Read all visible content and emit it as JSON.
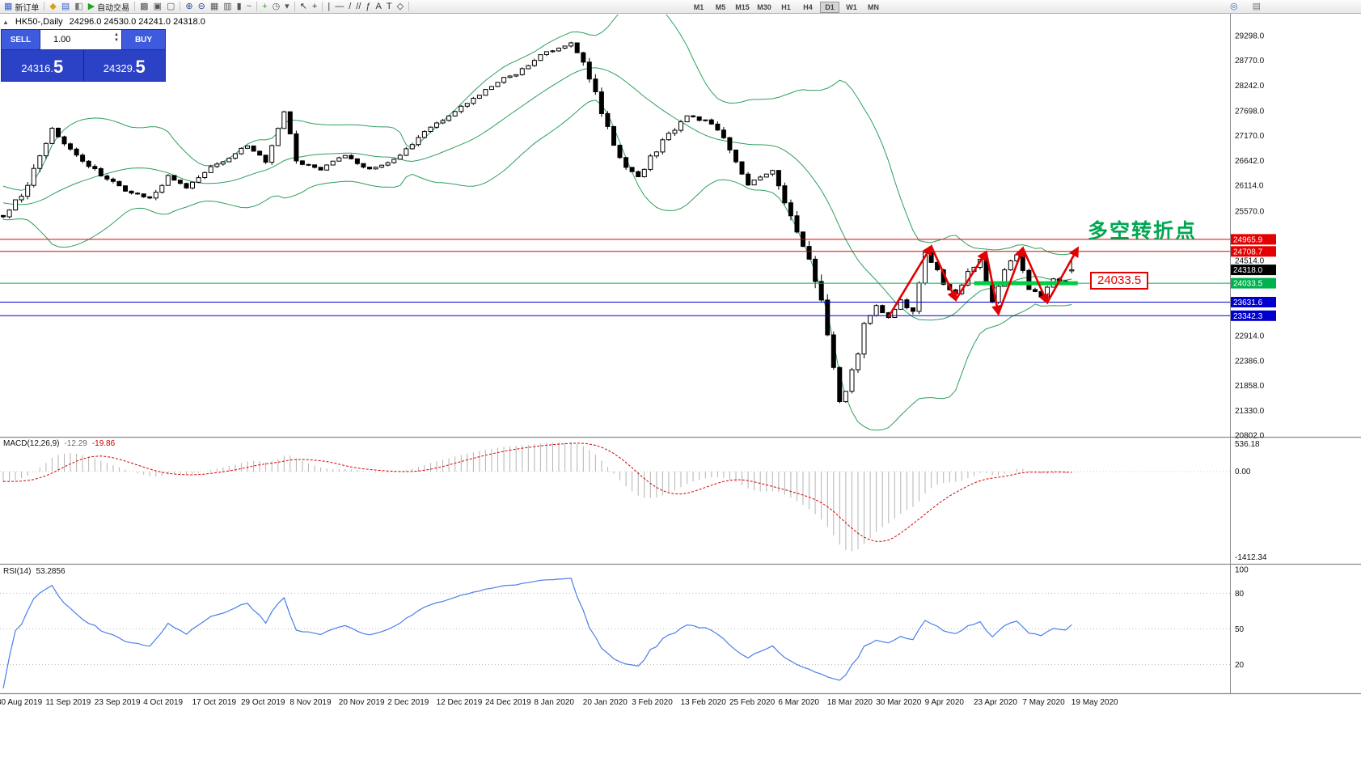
{
  "toolbar": {
    "left_items": [
      {
        "name": "new-order-button",
        "glyph": "▦",
        "glyph_color": "#3a62c8",
        "label": "新订单"
      },
      {
        "sep": true
      },
      {
        "name": "profiles-icon",
        "glyph": "◆",
        "glyph_color": "#d4a017"
      },
      {
        "name": "market-watch-icon",
        "glyph": "▤",
        "glyph_color": "#3a62c8"
      },
      {
        "name": "navigator-icon",
        "glyph": "◧",
        "glyph_color": "#777777"
      },
      {
        "name": "auto-trading-button",
        "glyph": "▶",
        "glyph_color": "#1fa51f",
        "label": "自动交易"
      },
      {
        "sep": true
      },
      {
        "name": "new-chart-icon",
        "glyph": "▩",
        "glyph_color": "#555555"
      },
      {
        "name": "cascade-windows-icon",
        "glyph": "▣",
        "glyph_color": "#555555"
      },
      {
        "name": "tile-windows-icon",
        "glyph": "▢",
        "glyph_color": "#555555"
      },
      {
        "sep": true
      },
      {
        "name": "zoom-in-icon",
        "glyph": "⊕",
        "glyph_color": "#2f4f8f"
      },
      {
        "name": "zoom-out-icon",
        "glyph": "⊖",
        "glyph_color": "#2f4f8f"
      },
      {
        "name": "grid-icon",
        "glyph": "▦",
        "glyph_color": "#555555"
      },
      {
        "name": "bar-chart-icon",
        "glyph": "▥",
        "glyph_color": "#555555"
      },
      {
        "name": "candlestick-chart-icon",
        "glyph": "▮",
        "glyph_color": "#555555"
      },
      {
        "name": "line-chart-icon",
        "glyph": "~",
        "glyph_color": "#555555"
      },
      {
        "sep": true
      },
      {
        "name": "indicators-icon",
        "glyph": "+",
        "glyph_color": "#1fa51f"
      },
      {
        "name": "periods-icon",
        "glyph": "◷",
        "glyph_color": "#555555"
      },
      {
        "name": "templates-icon",
        "glyph": "▾",
        "glyph_color": "#555555"
      },
      {
        "sep": true
      },
      {
        "name": "cursor-icon",
        "glyph": "↖",
        "glyph_color": "#333333"
      },
      {
        "name": "crosshair-icon",
        "glyph": "+",
        "glyph_color": "#333333"
      },
      {
        "sep": true
      },
      {
        "name": "vertical-line-icon",
        "glyph": "|",
        "glyph_color": "#333333"
      },
      {
        "name": "horizontal-line-icon",
        "glyph": "—",
        "glyph_color": "#333333"
      },
      {
        "name": "trendline-icon",
        "glyph": "/",
        "glyph_color": "#333333"
      },
      {
        "name": "channel-icon",
        "glyph": "//",
        "glyph_color": "#333333"
      },
      {
        "name": "fibonacci-icon",
        "glyph": "ƒ",
        "glyph_color": "#333333"
      },
      {
        "name": "text-icon",
        "glyph": "A",
        "glyph_color": "#333333"
      },
      {
        "name": "label-icon",
        "glyph": "T",
        "glyph_color": "#333333"
      },
      {
        "name": "shapes-icon",
        "glyph": "◇",
        "glyph_color": "#333333"
      },
      {
        "sep": true
      }
    ],
    "timeframes": {
      "items": [
        "M1",
        "M5",
        "M15",
        "M30",
        "H1",
        "H4",
        "D1",
        "W1",
        "MN"
      ],
      "active": "D1"
    },
    "right_items": [
      {
        "name": "search-icon",
        "glyph": "◎",
        "glyph_color": "#2f6fd4"
      },
      {
        "name": "panels-icon",
        "glyph": "▤",
        "glyph_color": "#777777"
      }
    ]
  },
  "trade_panel": {
    "sell_label": "SELL",
    "buy_label": "BUY",
    "lot": "1.00",
    "sell_price": "24316.5",
    "buy_price": "24329.5"
  },
  "chart_header": {
    "symbol": "HK50-,Daily",
    "ohlc": "24296.0 24530.0 24241.0 24318.0"
  },
  "indicators": {
    "macd": {
      "label": "MACD(12,26,9)",
      "value": "-12.29",
      "signal": "-19.86"
    },
    "rsi": {
      "label": "RSI(14)",
      "value": "53.2856"
    }
  },
  "annotations": {
    "turning_point_label": "多空转折点",
    "price_box_label": "24033.5"
  },
  "chart_data": {
    "type": "candlestick",
    "symbol": "HK50",
    "timeframe": "Daily",
    "ohlc_current": {
      "open": 24296.0,
      "high": 24530.0,
      "low": 24241.0,
      "close": 24318.0
    },
    "candle_count": 176,
    "seed": 42424242,
    "waypoints": [
      [
        0,
        25450
      ],
      [
        3,
        25900
      ],
      [
        8,
        27300
      ],
      [
        12,
        26750
      ],
      [
        16,
        26350
      ],
      [
        20,
        26000
      ],
      [
        24,
        25850
      ],
      [
        27,
        26300
      ],
      [
        30,
        26050
      ],
      [
        34,
        26500
      ],
      [
        40,
        26950
      ],
      [
        43,
        26650
      ],
      [
        46,
        27700
      ],
      [
        48,
        26650
      ],
      [
        52,
        26450
      ],
      [
        56,
        26750
      ],
      [
        60,
        26450
      ],
      [
        64,
        26650
      ],
      [
        68,
        27150
      ],
      [
        72,
        27500
      ],
      [
        76,
        27850
      ],
      [
        80,
        28250
      ],
      [
        84,
        28500
      ],
      [
        88,
        28900
      ],
      [
        91,
        29050
      ],
      [
        93,
        29150
      ],
      [
        96,
        28400
      ],
      [
        99,
        27300
      ],
      [
        102,
        26500
      ],
      [
        104,
        26300
      ],
      [
        108,
        27050
      ],
      [
        112,
        27600
      ],
      [
        116,
        27450
      ],
      [
        119,
        26900
      ],
      [
        122,
        26150
      ],
      [
        126,
        26450
      ],
      [
        128,
        25750
      ],
      [
        130,
        25100
      ],
      [
        133,
        24200
      ],
      [
        135,
        22900
      ],
      [
        137,
        21450
      ],
      [
        139,
        22100
      ],
      [
        141,
        23100
      ],
      [
        143,
        23550
      ],
      [
        145,
        23300
      ],
      [
        147,
        23700
      ],
      [
        149,
        23400
      ],
      [
        151,
        24680
      ],
      [
        154,
        24050
      ],
      [
        156,
        23800
      ],
      [
        158,
        24250
      ],
      [
        160,
        24500
      ],
      [
        162,
        23650
      ],
      [
        164,
        24350
      ],
      [
        166,
        24600
      ],
      [
        168,
        23950
      ],
      [
        170,
        23750
      ],
      [
        172,
        24150
      ],
      [
        174,
        24050
      ],
      [
        175,
        24318
      ]
    ],
    "bollinger": {
      "period": 20,
      "deviation": 2,
      "color": "#2e9e5e"
    },
    "candle_colors": {
      "bull_fill": "#ffffff",
      "bear_fill": "#000000",
      "outline": "#000000"
    },
    "horizontal_lines": [
      {
        "price": 24965.9,
        "color": "#e30000",
        "width": 1,
        "tag": "24965.9",
        "tag_bg": "#e30000"
      },
      {
        "price": 24708.7,
        "color": "#e30000",
        "width": 1,
        "tag": "24708.7",
        "tag_bg": "#e30000"
      },
      {
        "price": 24033.5,
        "color": "#00b14f",
        "width": 1,
        "tag": "24033.5",
        "tag_bg": "#00b14f"
      },
      {
        "price": 23631.6,
        "color": "#0000cc",
        "width": 1,
        "tag": "23631.6",
        "tag_bg": "#0000cc"
      },
      {
        "price": 23342.3,
        "color": "#0000cc",
        "width": 1,
        "tag": "23342.3",
        "tag_bg": "#0000cc"
      }
    ],
    "current_price_tag": {
      "price": 24318.0,
      "text": "24318.0",
      "bg": "#000000"
    },
    "thick_segment": {
      "price": 24033.5,
      "i_start": 159,
      "i_end": 176,
      "color": "#00cc44",
      "width": 5
    },
    "zigzag": {
      "color": "#e30000",
      "points": [
        [
          145,
          23320
        ],
        [
          152,
          24820
        ],
        [
          156,
          23680
        ],
        [
          161,
          24700
        ],
        [
          163,
          23380
        ],
        [
          167,
          24780
        ],
        [
          171,
          23620
        ],
        [
          176,
          24780
        ]
      ]
    },
    "price_axis": {
      "top_price": 29298.0,
      "bottom_price": 20802.0,
      "labels": [
        29298.0,
        28770.0,
        28242.0,
        27698.0,
        27170.0,
        26642.0,
        26114.0,
        25570.0,
        24514.0,
        22914.0,
        22386.0,
        21858.0,
        21330.0,
        20802.0
      ]
    },
    "macd_panel": {
      "fast": 12,
      "slow": 26,
      "signal_period": 9,
      "axis_labels": [
        "536.18",
        "0.00",
        "-1412.34"
      ],
      "hist_color": "#b3b3b3",
      "signal_color": "#d40000"
    },
    "rsi_panel": {
      "period": 14,
      "axis_labels": [
        "100",
        "80",
        "50",
        "20"
      ],
      "levels": [
        80,
        50,
        20
      ],
      "line_color": "#4a7fe8"
    },
    "date_labels": [
      "30 Aug 2019",
      "11 Sep 2019",
      "23 Sep 2019",
      "4 Oct 2019",
      "17 Oct 2019",
      "29 Oct 2019",
      "8 Nov 2019",
      "20 Nov 2019",
      "2 Dec 2019",
      "12 Dec 2019",
      "24 Dec 2019",
      "8 Jan 2020",
      "20 Jan 2020",
      "3 Feb 2020",
      "13 Feb 2020",
      "25 Feb 2020",
      "6 Mar 2020",
      "18 Mar 2020",
      "30 Mar 2020",
      "9 Apr 2020",
      "23 Apr 2020",
      "7 May 2020",
      "19 May 2020"
    ]
  }
}
